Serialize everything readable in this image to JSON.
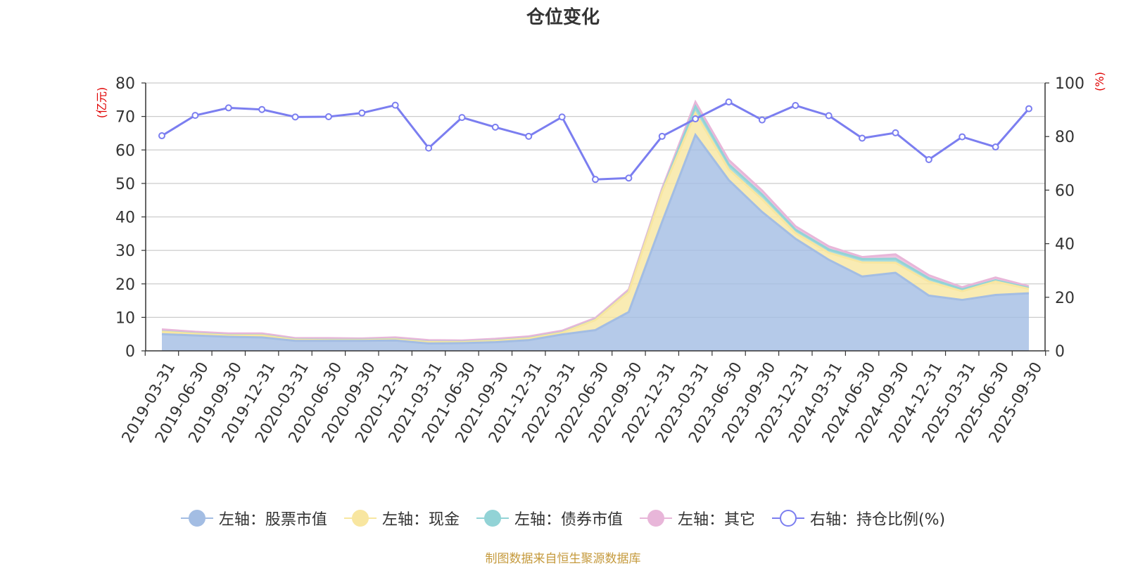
{
  "chart_data": {
    "type": "area",
    "title": "仓位变化",
    "left_axis_unit": "(亿元)",
    "right_axis_unit": "(%)",
    "ylim_left": [
      0,
      80
    ],
    "yticks_left": [
      0,
      10,
      20,
      30,
      40,
      50,
      60,
      70,
      80
    ],
    "ylim_right": [
      0,
      100
    ],
    "yticks_right": [
      0,
      20,
      40,
      60,
      80,
      100
    ],
    "x": [
      "2019-03-31",
      "2019-06-30",
      "2019-09-30",
      "2019-12-31",
      "2020-03-31",
      "2020-06-30",
      "2020-09-30",
      "2020-12-31",
      "2021-03-31",
      "2021-06-30",
      "2021-09-30",
      "2021-12-31",
      "2022-03-31",
      "2022-06-30",
      "2022-09-30",
      "2022-12-31",
      "2023-03-31",
      "2023-06-30",
      "2023-09-30",
      "2023-12-31",
      "2024-03-31",
      "2024-06-30",
      "2024-09-30",
      "2024-12-31",
      "2025-03-31",
      "2025-06-30",
      "2025-09-30"
    ],
    "stacked_series": [
      {
        "name": "左轴：股票市值",
        "color": "#a3bde3",
        "values": [
          5.0,
          4.6,
          4.2,
          4.0,
          3.0,
          3.0,
          3.0,
          3.1,
          2.2,
          2.3,
          2.6,
          3.2,
          4.9,
          6.2,
          11.6,
          38.5,
          64.5,
          51.0,
          41.5,
          33.5,
          27.2,
          22.2,
          23.3,
          16.5,
          15.2,
          16.7,
          17.2
        ]
      },
      {
        "name": "左轴：现金",
        "color": "#f8e6a0",
        "values": [
          0.7,
          0.5,
          0.4,
          0.6,
          0.3,
          0.2,
          0.2,
          0.3,
          0.4,
          0.3,
          0.4,
          0.5,
          0.5,
          3.0,
          6.0,
          9.0,
          6.5,
          3.2,
          3.8,
          1.7,
          2.1,
          4.2,
          3.0,
          4.2,
          2.6,
          4.0,
          1.3
        ]
      },
      {
        "name": "左轴：债券市值",
        "color": "#92d3d6",
        "values": [
          0.1,
          0.1,
          0.1,
          0.1,
          0.1,
          0.1,
          0.1,
          0.1,
          0.1,
          0.1,
          0.1,
          0.1,
          0.1,
          0.1,
          0.1,
          0.2,
          2.0,
          1.5,
          1.4,
          1.0,
          1.0,
          1.0,
          1.2,
          1.0,
          0.6,
          0.4,
          0.3
        ]
      },
      {
        "name": "左轴：其它",
        "color": "#e8b6d9",
        "values": [
          0.6,
          0.5,
          0.5,
          0.5,
          0.4,
          0.5,
          0.4,
          0.5,
          0.5,
          0.4,
          0.5,
          0.5,
          0.5,
          0.5,
          0.6,
          0.8,
          1.3,
          1.3,
          1.2,
          1.0,
          0.9,
          0.6,
          1.3,
          0.9,
          0.6,
          0.8,
          0.5
        ]
      }
    ],
    "line_series": {
      "name": "右轴：持仓比例(%)",
      "axis": "right",
      "color": "#7b7ef0",
      "values": [
        80.3,
        87.9,
        90.7,
        90.1,
        87.3,
        87.4,
        88.8,
        91.7,
        75.7,
        87.1,
        83.5,
        80.1,
        87.3,
        64.0,
        64.5,
        80.1,
        86.6,
        92.9,
        86.2,
        91.6,
        87.8,
        79.4,
        81.4,
        71.4,
        79.9,
        76.1,
        90.4
      ]
    }
  },
  "source_note": "制图数据来自恒生聚源数据库"
}
